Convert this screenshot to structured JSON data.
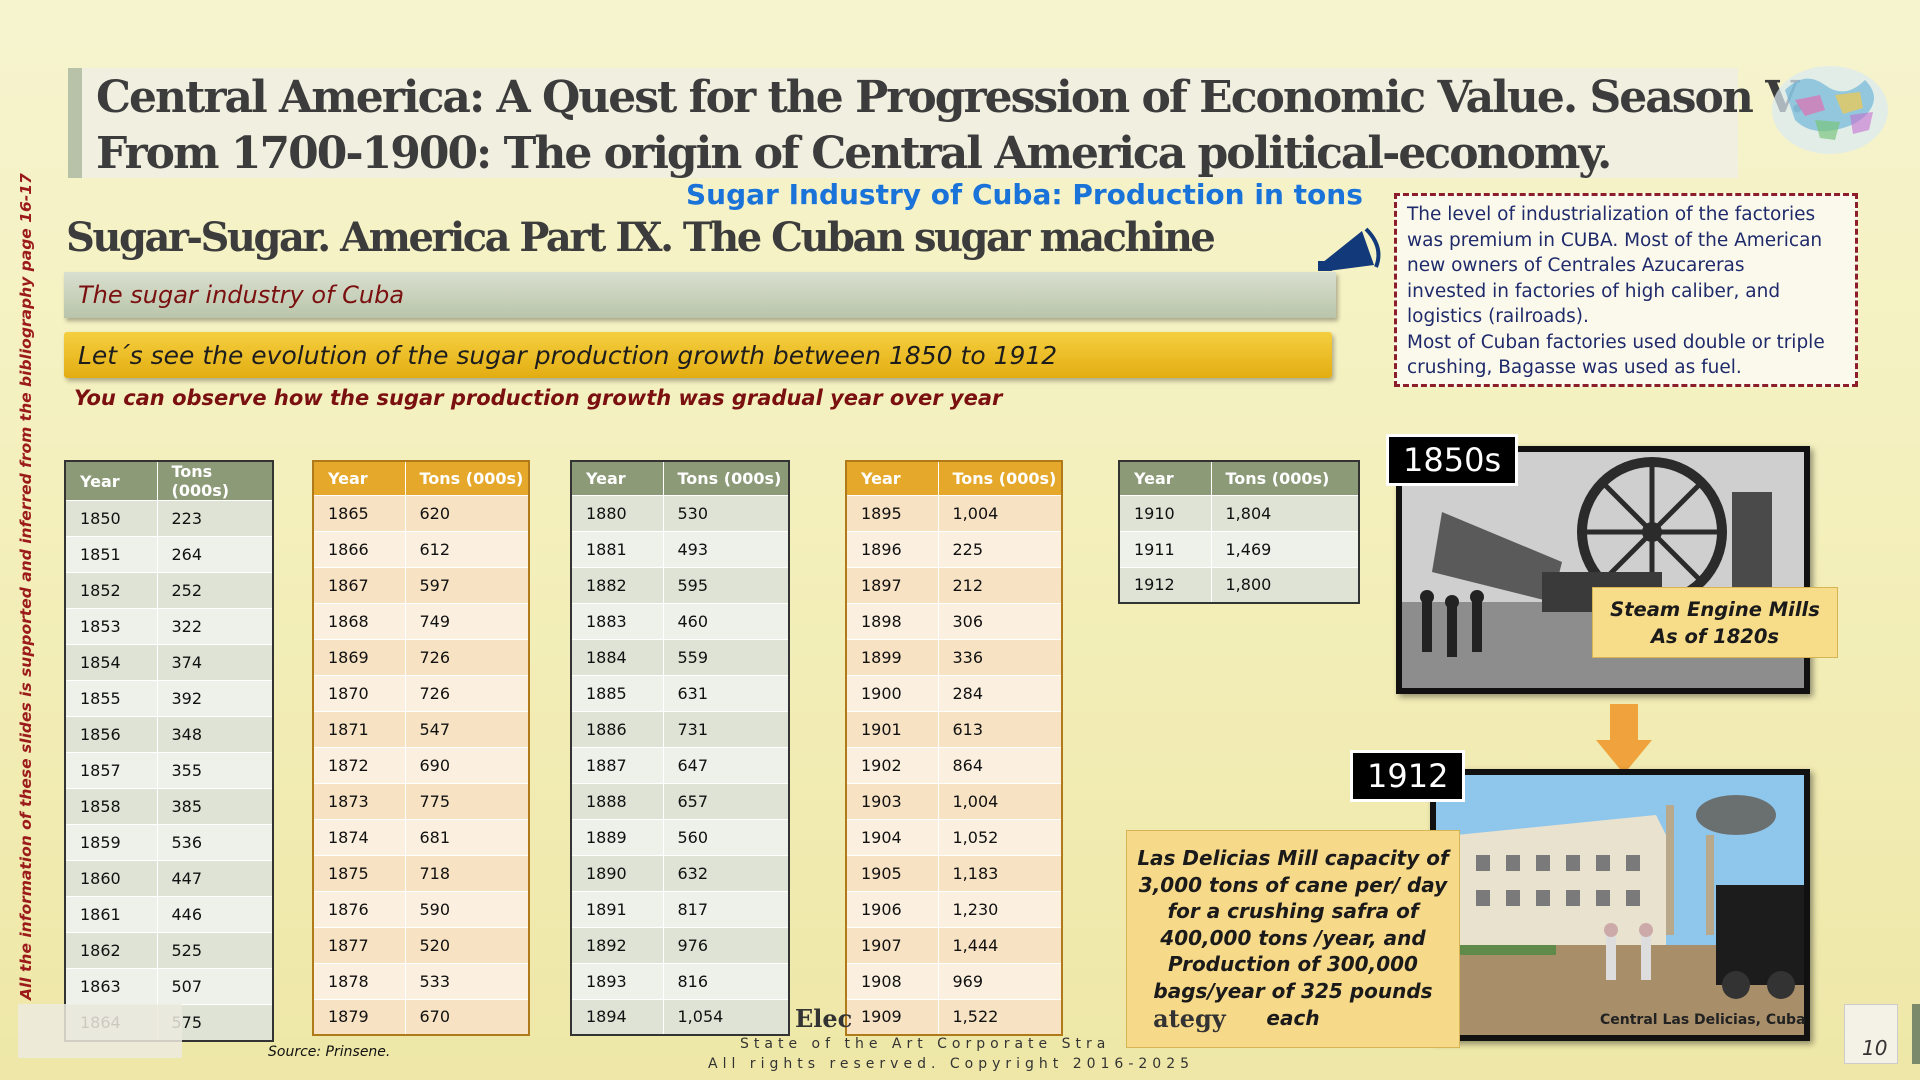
{
  "title": {
    "line1": "Central America:  A Quest for the Progression of Economic Value. Season V.",
    "line2": "From 1700-1900: The origin of  Central America political-economy."
  },
  "chart_heading": "Sugar Industry of Cuba: Production in tons",
  "subtitle": "Sugar-Sugar. America Part IX. The Cuban sugar machine",
  "band_industry": "The sugar industry of Cuba",
  "band_evolution": "Let´s see the evolution of the sugar production growth between 1850 to 1912",
  "observe_text": "You can observe how the sugar production growth was gradual year over year",
  "callout": {
    "line1": "The level of industrialization of the factories",
    "line2": "was premium in CUBA. Most of the American",
    "line3": "new owners of Centrales Azucareras",
    "line4": "invested in factories of high caliber, and",
    "line5": "logistics (railroads).",
    "line6": "Most of Cuban factories used double or triple",
    "line7": "crushing, Bagasse was used as fuel."
  },
  "side_note": "All the information of these slides is supported and inferred from the bibliography page 16-17",
  "table_headers": {
    "year": "Year",
    "tons": "Tons (000s)"
  },
  "tables": [
    {
      "rows": [
        [
          "1850",
          "223"
        ],
        [
          "1851",
          "264"
        ],
        [
          "1852",
          "252"
        ],
        [
          "1853",
          "322"
        ],
        [
          "1854",
          "374"
        ],
        [
          "1855",
          "392"
        ],
        [
          "1856",
          "348"
        ],
        [
          "1857",
          "355"
        ],
        [
          "1858",
          "385"
        ],
        [
          "1859",
          "536"
        ],
        [
          "1860",
          "447"
        ],
        [
          "1861",
          "446"
        ],
        [
          "1862",
          "525"
        ],
        [
          "1863",
          "507"
        ],
        [
          "1864",
          "575"
        ]
      ]
    },
    {
      "rows": [
        [
          "1865",
          "620"
        ],
        [
          "1866",
          "612"
        ],
        [
          "1867",
          "597"
        ],
        [
          "1868",
          "749"
        ],
        [
          "1869",
          "726"
        ],
        [
          "1870",
          "726"
        ],
        [
          "1871",
          "547"
        ],
        [
          "1872",
          "690"
        ],
        [
          "1873",
          "775"
        ],
        [
          "1874",
          "681"
        ],
        [
          "1875",
          "718"
        ],
        [
          "1876",
          "590"
        ],
        [
          "1877",
          "520"
        ],
        [
          "1878",
          "533"
        ],
        [
          "1879",
          "670"
        ]
      ]
    },
    {
      "rows": [
        [
          "1880",
          "530"
        ],
        [
          "1881",
          "493"
        ],
        [
          "1882",
          "595"
        ],
        [
          "1883",
          "460"
        ],
        [
          "1884",
          "559"
        ],
        [
          "1885",
          "631"
        ],
        [
          "1886",
          "731"
        ],
        [
          "1887",
          "647"
        ],
        [
          "1888",
          "657"
        ],
        [
          "1889",
          "560"
        ],
        [
          "1890",
          "632"
        ],
        [
          "1891",
          "817"
        ],
        [
          "1892",
          "976"
        ],
        [
          "1893",
          "816"
        ],
        [
          "1894",
          "1,054"
        ]
      ]
    },
    {
      "rows": [
        [
          "1895",
          "1,004"
        ],
        [
          "1896",
          "225"
        ],
        [
          "1897",
          "212"
        ],
        [
          "1898",
          "306"
        ],
        [
          "1899",
          "336"
        ],
        [
          "1900",
          "284"
        ],
        [
          "1901",
          "613"
        ],
        [
          "1902",
          "864"
        ],
        [
          "1903",
          "1,004"
        ],
        [
          "1904",
          "1,052"
        ],
        [
          "1905",
          "1,183"
        ],
        [
          "1906",
          "1,230"
        ],
        [
          "1907",
          "1,444"
        ],
        [
          "1908",
          "969"
        ],
        [
          "1909",
          "1,522"
        ]
      ]
    },
    {
      "rows": [
        [
          "1910",
          "1,804"
        ],
        [
          "1911",
          "1,469"
        ],
        [
          "1912",
          "1,800"
        ]
      ]
    }
  ],
  "source": "Source: Prinsene.",
  "photo_tags": {
    "first": "1850s",
    "second": "1912"
  },
  "steam_box": {
    "line1": "Steam Engine Mills",
    "line2": "As of 1820s"
  },
  "delicias_box": {
    "line1": "Las Delicias Mill capacity  of",
    "line2": "3,000 tons of cane per/ day",
    "line3": "for a crushing safra of",
    "line4": "400,000 tons /year, and",
    "line5": "Production of 300,000",
    "line6": "bags/year of 325 pounds",
    "line7": "each"
  },
  "photo_caption": "Central Las Delicias, Cuba",
  "footer": {
    "brand": "Elec                                    ategy",
    "line1": "State of the Art Corporate Stra",
    "line2": "All rights reserved. Copyright 2016-2025"
  },
  "page_number": "10",
  "colors": {
    "title_text": "#3c3c3c",
    "chart_heading": "#1a73d9",
    "dark_red": "#7a1010",
    "gold_band": "#e3ad12",
    "green_header": "#8c9a78",
    "amber_header": "#e5a82a",
    "callout_border": "#8b1e2a"
  }
}
